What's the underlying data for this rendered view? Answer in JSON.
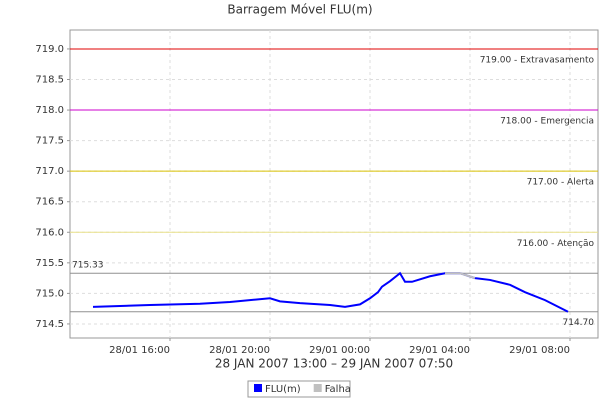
{
  "chart_data": {
    "type": "line",
    "title": "Barragem Móvel FLU(m)",
    "x_label": "28 JAN 2007 13:00 – 29 JAN 2007 07:50",
    "x": [
      12.92,
      15.2,
      17.2,
      18.4,
      20,
      20.4,
      21.2,
      22.4,
      23,
      23.6,
      24,
      24.32,
      24.48,
      24.8,
      25.2,
      25.4,
      25.68,
      26.4,
      27,
      27.6,
      28.2,
      28.8,
      29.6,
      30.2,
      31,
      31.92
    ],
    "series": [
      {
        "name": "FLU(m)",
        "color": "#0000ff",
        "values": [
          714.78,
          714.81,
          714.83,
          714.86,
          714.92,
          714.87,
          714.84,
          714.81,
          714.78,
          714.82,
          714.92,
          715.02,
          715.11,
          715.2,
          715.33,
          715.19,
          715.19,
          715.28,
          715.33,
          715.33,
          715.25,
          715.22,
          715.14,
          715.02,
          714.89,
          714.7
        ]
      },
      {
        "name": "Falha",
        "color": "#c0c0c0",
        "values": [
          null,
          null,
          null,
          null,
          null,
          null,
          null,
          null,
          null,
          null,
          null,
          null,
          null,
          null,
          null,
          null,
          null,
          null,
          715.33,
          715.33,
          715.25,
          null,
          null,
          null,
          null,
          null
        ]
      }
    ],
    "xlim": [
      12,
      33.12
    ],
    "ylim": [
      714.27,
      719.31
    ],
    "xticks": [
      {
        "value": 16,
        "label": "28/01 16:00"
      },
      {
        "value": 20,
        "label": "28/01 20:00"
      },
      {
        "value": 24,
        "label": "29/01 00:00"
      },
      {
        "value": 28,
        "label": "29/01 04:00"
      },
      {
        "value": 32,
        "label": "29/01 08:00"
      }
    ],
    "yticks": [
      714.5,
      {
        "value": 715,
        "label": "715.0"
      },
      715.5,
      {
        "value": 716,
        "label": "716.0"
      },
      716.5,
      {
        "value": 717,
        "label": "717.0"
      },
      717.5,
      {
        "value": 718,
        "label": "718.0"
      },
      718.5,
      {
        "value": 719,
        "label": "719.0"
      }
    ],
    "grid": true,
    "thresholds": [
      {
        "value": 719,
        "label": "719.00 - Extravasamento",
        "color": "#e00000",
        "align": "right"
      },
      {
        "value": 718,
        "label": "718.00 - Emergencia",
        "color": "#cc00cc",
        "align": "right"
      },
      {
        "value": 717,
        "label": "717.00 - Alerta",
        "color": "#d8c000",
        "align": "right"
      },
      {
        "value": 716,
        "label": "716.00 - Atenção",
        "color": "#e8e088",
        "align": "right"
      },
      {
        "value": 715.33,
        "label": "715.33",
        "color": "#909090",
        "align": "left"
      },
      {
        "value": 714.7,
        "label": "714.70",
        "color": "#909090",
        "align": "right"
      }
    ]
  }
}
